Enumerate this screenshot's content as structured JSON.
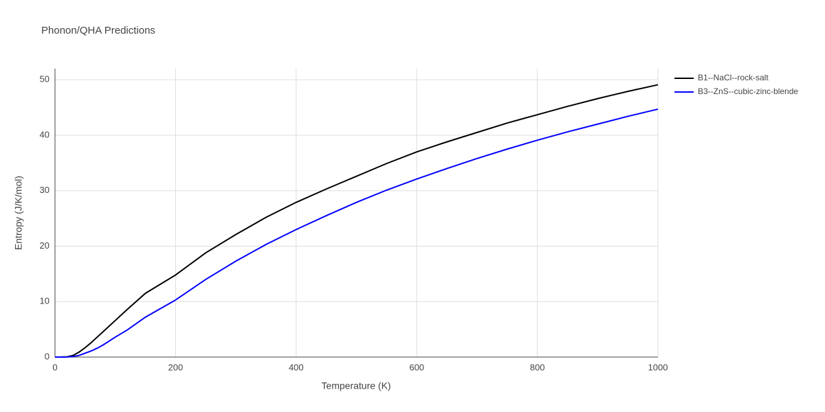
{
  "chart_data": {
    "type": "line",
    "title": "Phonon/QHA Predictions",
    "x_label": "Temperature (K)",
    "y_label": "Entropy (J/K/mol)",
    "x": [
      0,
      10,
      20,
      30,
      40,
      50,
      60,
      70,
      80,
      100,
      120,
      150,
      200,
      250,
      300,
      350,
      400,
      450,
      500,
      550,
      600,
      650,
      700,
      750,
      800,
      850,
      900,
      950,
      1000
    ],
    "series": [
      {
        "name": "B1--NaCl--rock-salt",
        "color": "#000000",
        "values": [
          0,
          0.01,
          0.05,
          0.3,
          0.9,
          1.7,
          2.6,
          3.6,
          4.6,
          6.6,
          8.6,
          11.5,
          14.8,
          18.8,
          22.1,
          25.2,
          27.9,
          30.3,
          32.6,
          34.9,
          37.0,
          38.8,
          40.5,
          42.2,
          43.7,
          45.2,
          46.6,
          47.9,
          49.1
        ]
      },
      {
        "name": "B3--ZnS--cubic-zinc-blende",
        "color": "#0000ff",
        "values": [
          0,
          0,
          0.02,
          0.1,
          0.3,
          0.7,
          1.1,
          1.6,
          2.2,
          3.6,
          4.9,
          7.2,
          10.3,
          14.0,
          17.3,
          20.3,
          23.0,
          25.5,
          27.9,
          30.1,
          32.1,
          34.0,
          35.8,
          37.5,
          39.1,
          40.6,
          42.0,
          43.4,
          44.7
        ]
      }
    ],
    "xlim": [
      0,
      1000
    ],
    "xticks": [
      0,
      200,
      400,
      600,
      800,
      1000
    ],
    "ylim": [
      0,
      52
    ],
    "yticks": [
      0,
      10,
      20,
      30,
      40,
      50
    ],
    "grid": true
  }
}
